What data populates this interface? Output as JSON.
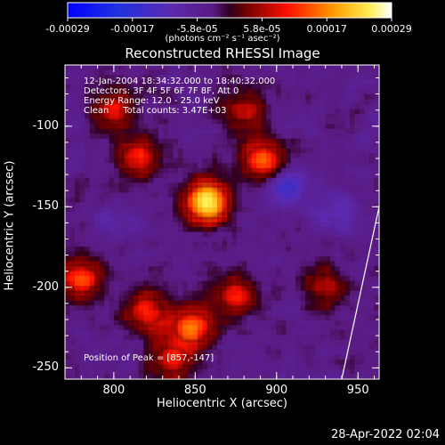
{
  "chart_data": {
    "type": "heatmap",
    "title": "Reconstructed RHESSI Image",
    "xlabel": "Heliocentric X (arcsec)",
    "ylabel": "Heliocentric Y (arcsec)",
    "xlim": [
      770,
      963
    ],
    "ylim": [
      -257,
      -62
    ],
    "x_ticks": [
      "800",
      "850",
      "900",
      "950"
    ],
    "x_tick_values": [
      800,
      850,
      900,
      950
    ],
    "y_ticks": [
      "-100",
      "-150",
      "-200",
      "-250"
    ],
    "y_tick_values": [
      -100,
      -150,
      -200,
      -250
    ],
    "colorbar": {
      "ticks": [
        "-0.00029",
        "-0.00017",
        "-5.8e-05",
        "5.8e-05",
        "0.00017",
        "0.00029"
      ],
      "range": [
        -0.00029,
        0.00029
      ],
      "unit": "(photons cm⁻² s⁻¹ asec⁻²)"
    },
    "info_lines": [
      "12-Jan-2004 18:34:32.000 to 18:40:32.000",
      "Detectors: 3F 4F 5F 6F 7F 8F, Att 0",
      "Energy Range: 12.0 - 25.0 keV",
      "Clean     Total counts: 3.47E+03"
    ],
    "peak_label": "Position of Peak = [857,-147]",
    "peak": [
      857,
      -147
    ],
    "limb_line": [
      [
        940,
        -257
      ],
      [
        963,
        -150
      ]
    ],
    "bright_sources": [
      {
        "x": 857,
        "y": -147,
        "value": 0.00029
      },
      {
        "x": 892,
        "y": -122,
        "value": 0.00017
      },
      {
        "x": 815,
        "y": -120,
        "value": 0.00012
      },
      {
        "x": 780,
        "y": -195,
        "value": 0.00015
      },
      {
        "x": 820,
        "y": -215,
        "value": 0.00013
      },
      {
        "x": 848,
        "y": -225,
        "value": 0.00017
      },
      {
        "x": 875,
        "y": -205,
        "value": 0.00011
      },
      {
        "x": 800,
        "y": -90,
        "value": 0.0001
      },
      {
        "x": 835,
        "y": -245,
        "value": 0.00011
      },
      {
        "x": 930,
        "y": -200,
        "value": 8e-05
      },
      {
        "x": 880,
        "y": -90,
        "value": 8e-05
      }
    ],
    "dark_sources": [
      {
        "x": 905,
        "y": -137,
        "value": -0.00017
      },
      {
        "x": 935,
        "y": -150,
        "value": -0.0001
      },
      {
        "x": 800,
        "y": -160,
        "value": -8e-05
      }
    ]
  },
  "timestamp": "28-Apr-2022 02:04"
}
